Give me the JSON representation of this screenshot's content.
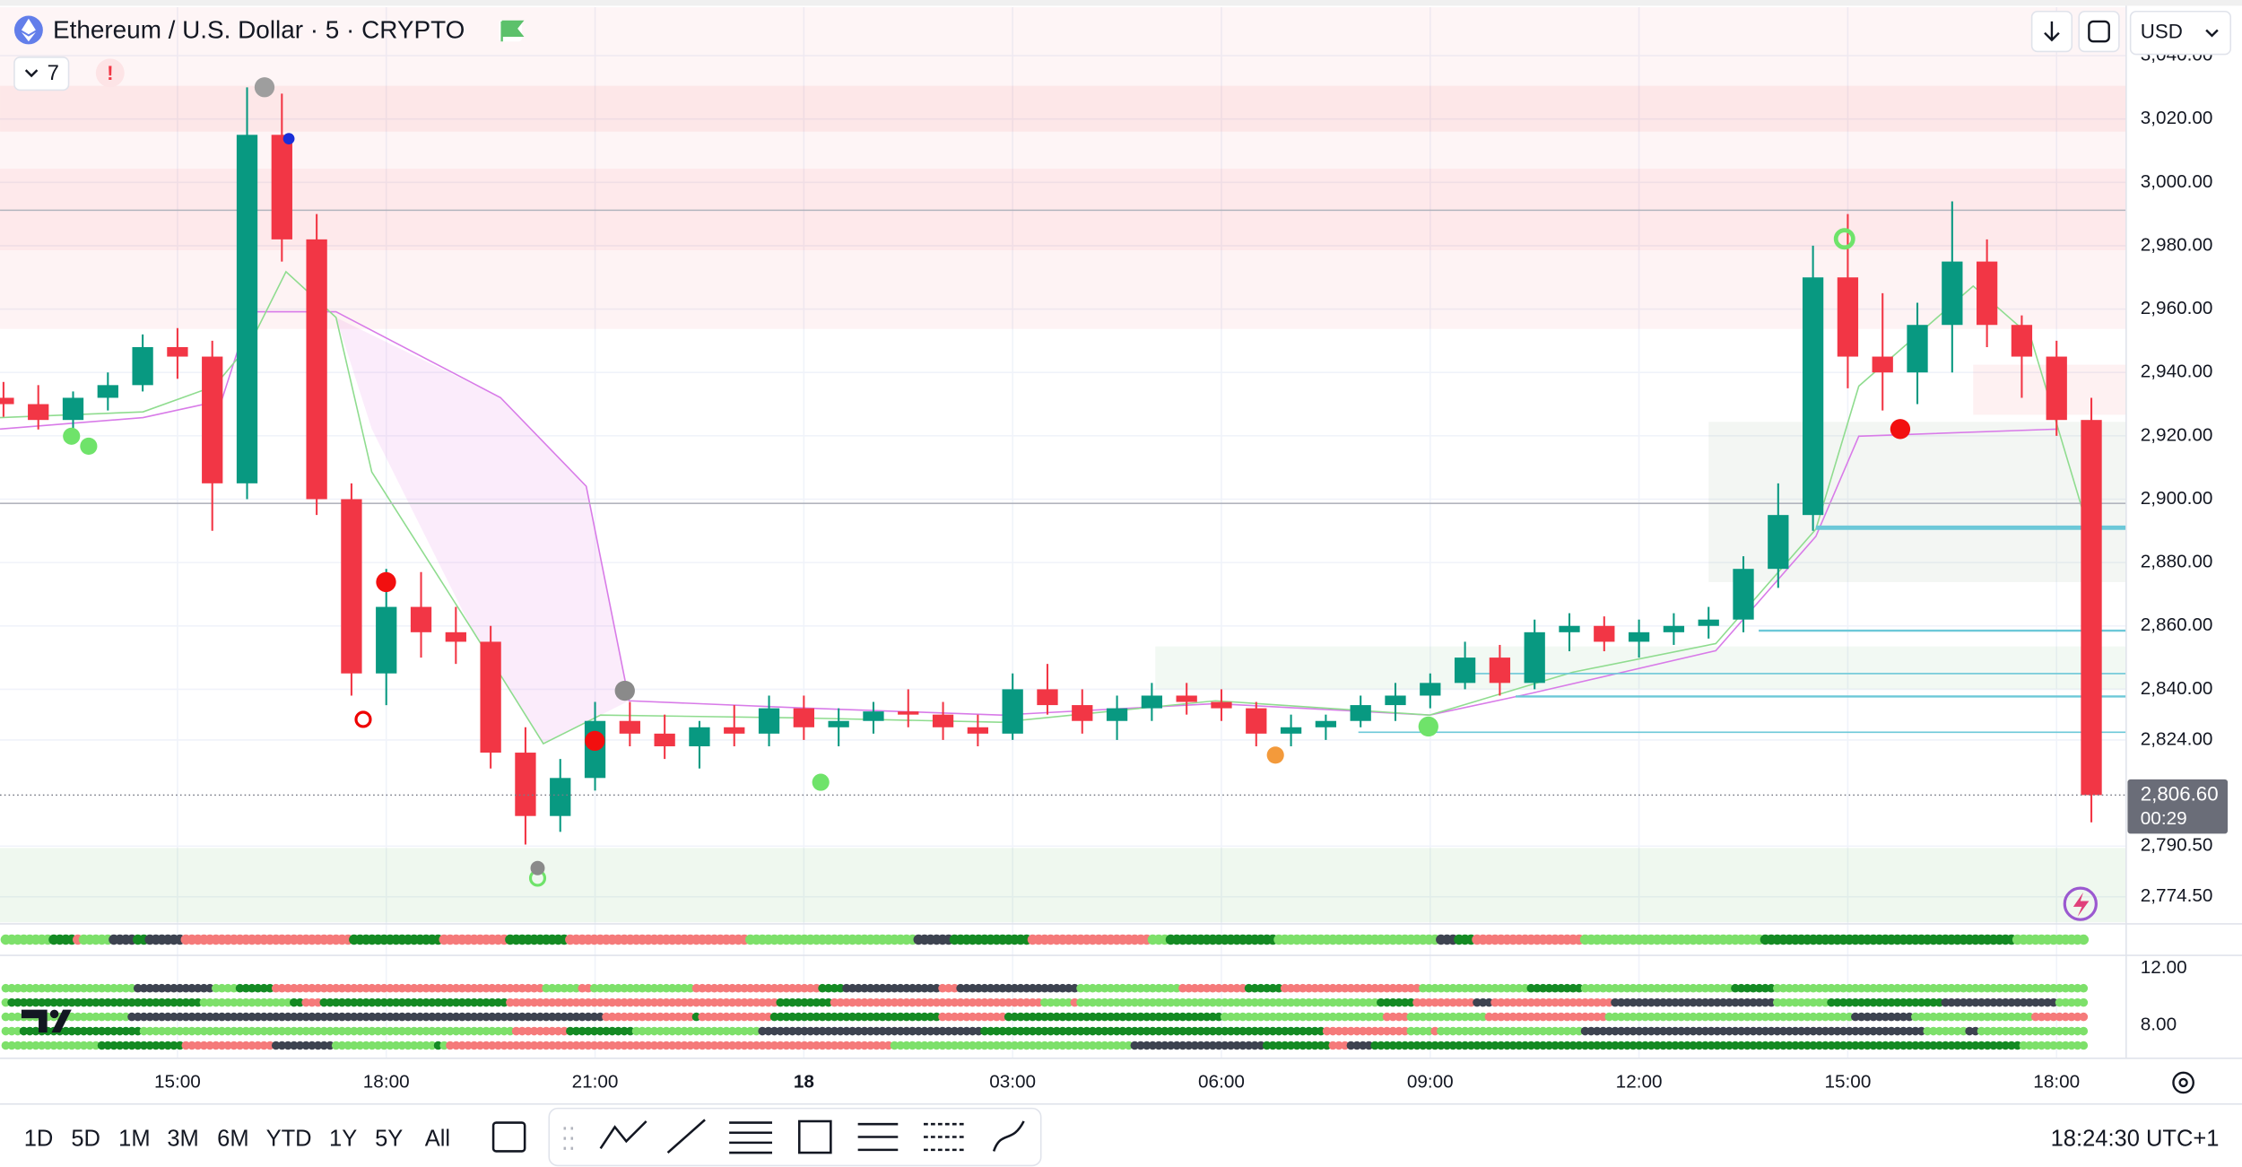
{
  "header": {
    "indicators_count": "7",
    "alert": "!",
    "currency": "USD"
  },
  "toolbar": {
    "ranges": [
      "1D",
      "5D",
      "1M",
      "3M",
      "6M",
      "YTD",
      "1Y",
      "5Y",
      "All"
    ],
    "clock": "18:24:30 UTC+1"
  },
  "indicator_pane": {
    "ticks": [
      "12.00",
      "8.00"
    ]
  },
  "chart_data": {
    "type": "candlestick",
    "title": "Ethereum / U.S. Dollar · 5 · CRYPTO",
    "up_color": "#089981",
    "down_color": "#f23645",
    "grid": true,
    "x": [
      12.5,
      13,
      13.5,
      14,
      14.5,
      15,
      15.5,
      16,
      16.5,
      17,
      17.5,
      18,
      18.5,
      19,
      19.5,
      20,
      20.5,
      21,
      21.5,
      22,
      22.5,
      23,
      23.5,
      24,
      24.5,
      25,
      25.5,
      26,
      26.5,
      27,
      27.5,
      28,
      28.5,
      29,
      29.5,
      30,
      30.5,
      31,
      31.5,
      32,
      32.5,
      33,
      33.5,
      34,
      34.5,
      35,
      35.5,
      36,
      36.5,
      37,
      37.5,
      38,
      38.5,
      39,
      39.5,
      40,
      40.5,
      41,
      41.5,
      42,
      42.5
    ],
    "open": [
      2932,
      2930,
      2925,
      2932,
      2936,
      2948,
      2945,
      2905,
      3015,
      2982,
      2900,
      2845,
      2866,
      2858,
      2855,
      2820,
      2800,
      2812,
      2830,
      2826,
      2822,
      2828,
      2826,
      2834,
      2828,
      2830,
      2833,
      2832,
      2828,
      2826,
      2840,
      2835,
      2830,
      2834,
      2838,
      2836,
      2834,
      2826,
      2828,
      2830,
      2835,
      2838,
      2842,
      2850,
      2842,
      2858,
      2860,
      2855,
      2858,
      2860,
      2862,
      2878,
      2895,
      2970,
      2945,
      2940,
      2955,
      2975,
      2955,
      2945,
      2925
    ],
    "high": [
      2937,
      2936,
      2934,
      2940,
      2952,
      2954,
      2950,
      3030,
      3028,
      2990,
      2905,
      2878,
      2877,
      2866,
      2860,
      2828,
      2818,
      2836,
      2836,
      2832,
      2830,
      2835,
      2838,
      2838,
      2834,
      2836,
      2840,
      2836,
      2832,
      2845,
      2848,
      2840,
      2838,
      2842,
      2842,
      2840,
      2836,
      2832,
      2832,
      2838,
      2842,
      2845,
      2855,
      2854,
      2862,
      2864,
      2863,
      2862,
      2864,
      2866,
      2882,
      2905,
      2980,
      2990,
      2965,
      2962,
      2994,
      2982,
      2958,
      2950,
      2932
    ],
    "low": [
      2926,
      2922,
      2920,
      2928,
      2934,
      2938,
      2890,
      2900,
      2975,
      2895,
      2838,
      2835,
      2850,
      2848,
      2815,
      2791,
      2795,
      2808,
      2822,
      2818,
      2815,
      2822,
      2822,
      2824,
      2822,
      2826,
      2828,
      2824,
      2822,
      2824,
      2832,
      2826,
      2824,
      2830,
      2832,
      2830,
      2822,
      2822,
      2824,
      2828,
      2830,
      2834,
      2840,
      2838,
      2840,
      2852,
      2852,
      2850,
      2854,
      2856,
      2858,
      2872,
      2890,
      2935,
      2928,
      2930,
      2940,
      2948,
      2932,
      2920,
      2798
    ],
    "close": [
      2930,
      2925,
      2932,
      2936,
      2948,
      2945,
      2905,
      3015,
      2982,
      2900,
      2845,
      2866,
      2858,
      2855,
      2820,
      2800,
      2812,
      2830,
      2826,
      2822,
      2828,
      2826,
      2834,
      2828,
      2830,
      2833,
      2832,
      2828,
      2826,
      2840,
      2835,
      2830,
      2834,
      2838,
      2836,
      2834,
      2826,
      2828,
      2830,
      2835,
      2838,
      2842,
      2850,
      2842,
      2858,
      2860,
      2855,
      2858,
      2860,
      2862,
      2878,
      2895,
      2970,
      2945,
      2940,
      2955,
      2975,
      2955,
      2945,
      2925,
      2806.6
    ],
    "xlim": [
      12.45,
      43.0
    ],
    "xticks": [
      {
        "value": 15,
        "label": "15:00"
      },
      {
        "value": 18,
        "label": "18:00"
      },
      {
        "value": 21,
        "label": "21:00"
      },
      {
        "value": 24,
        "label": "18"
      },
      {
        "value": 27,
        "label": "03:00"
      },
      {
        "value": 30,
        "label": "06:00"
      },
      {
        "value": 33,
        "label": "09:00"
      },
      {
        "value": 36,
        "label": "12:00"
      },
      {
        "value": 39,
        "label": "15:00"
      },
      {
        "value": 42,
        "label": "18:00"
      }
    ],
    "ylim": [
      2766.4,
      3055.3
    ],
    "yticks": [
      {
        "value": 3040,
        "label": "3,040.00"
      },
      {
        "value": 3020,
        "label": "3,020.00"
      },
      {
        "value": 3000,
        "label": "3,000.00"
      },
      {
        "value": 2980,
        "label": "2,980.00"
      },
      {
        "value": 2960,
        "label": "2,960.00"
      },
      {
        "value": 2940,
        "label": "2,940.00"
      },
      {
        "value": 2920,
        "label": "2,920.00"
      },
      {
        "value": 2900,
        "label": "2,900.00"
      },
      {
        "value": 2880,
        "label": "2,880.00"
      },
      {
        "value": 2860,
        "label": "2,860.00"
      },
      {
        "value": 2840,
        "label": "2,840.00"
      },
      {
        "value": 2824,
        "label": "2,824.00"
      },
      {
        "value": 2790.5,
        "label": "2,790.50"
      },
      {
        "value": 2774.5,
        "label": "2,774.50"
      }
    ],
    "last_price": {
      "value": 2806.6,
      "label": "2,806.60"
    },
    "countdown": "00:29"
  }
}
